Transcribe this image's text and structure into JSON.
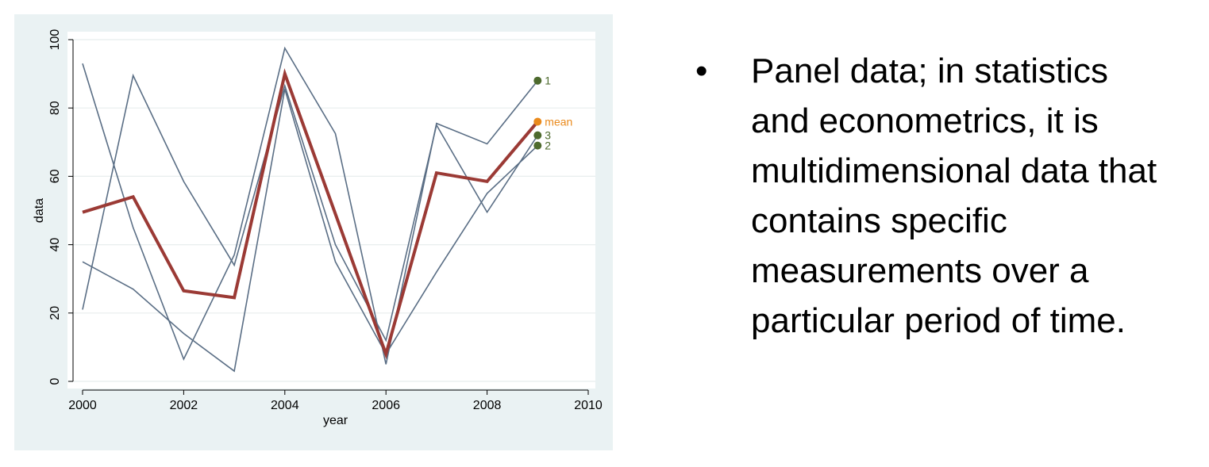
{
  "slide": {
    "bullet_symbol": "•",
    "bullet_lines": [
      "Panel data; in statistics",
      "and econometrics, it is",
      "multidimensional data that",
      "contains specific",
      "measurements over a",
      "particular period of time."
    ]
  },
  "chart_data": {
    "type": "line",
    "xlabel": "year",
    "ylabel": "data",
    "xlim": [
      2000,
      2010
    ],
    "ylim": [
      0,
      100
    ],
    "x_ticks": [
      2000,
      2002,
      2004,
      2006,
      2008,
      2010
    ],
    "y_ticks": [
      0,
      20,
      40,
      60,
      80,
      100
    ],
    "grid": "horizontal",
    "x": [
      2000,
      2001,
      2002,
      2003,
      2004,
      2005,
      2006,
      2007,
      2008,
      2009
    ],
    "series": [
      {
        "name": "1",
        "color": "#5a6e85",
        "end_marker_color": "#4d6a2d",
        "values": [
          93,
          45,
          6.5,
          37,
          97.5,
          72.5,
          5,
          75.5,
          69.5,
          88
        ]
      },
      {
        "name": "2",
        "color": "#5a6e85",
        "end_marker_color": "#4d6a2d",
        "values": [
          35,
          27,
          14,
          3,
          85.5,
          35,
          8,
          32,
          55,
          69
        ]
      },
      {
        "name": "3",
        "color": "#5a6e85",
        "end_marker_color": "#4d6a2d",
        "values": [
          21,
          89.5,
          58.5,
          34,
          86.5,
          40,
          12,
          75,
          49.5,
          72
        ]
      },
      {
        "name": "mean",
        "color": "#9b3a35",
        "end_marker_color": "#ea8a1c",
        "label_color": "#ea8a1c",
        "values": [
          49.5,
          54,
          26.5,
          24.5,
          90,
          49,
          8,
          61,
          58.5,
          76
        ]
      }
    ]
  }
}
